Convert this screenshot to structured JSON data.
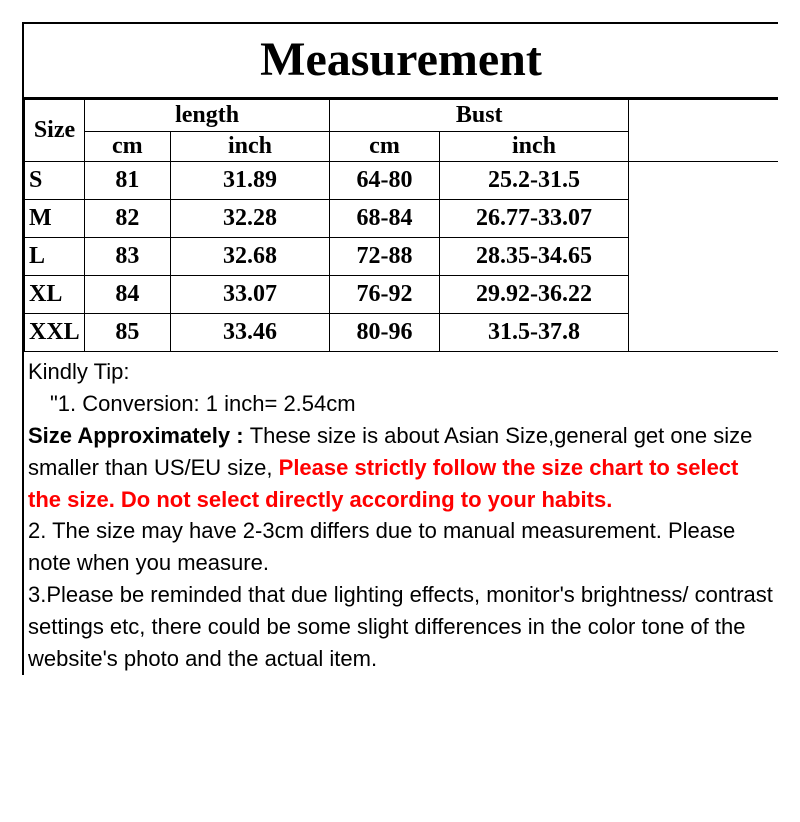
{
  "title": "Measurement",
  "headers": {
    "size": "Size",
    "length": "length",
    "bust": "Bust",
    "cm": "cm",
    "inch": "inch"
  },
  "rows": [
    {
      "size": "S",
      "len_cm": "81",
      "len_in": "31.89",
      "bust_cm": "64-80",
      "bust_in": "25.2-31.5"
    },
    {
      "size": "M",
      "len_cm": "82",
      "len_in": "32.28",
      "bust_cm": "68-84",
      "bust_in": "26.77-33.07"
    },
    {
      "size": "L",
      "len_cm": "83",
      "len_in": "32.68",
      "bust_cm": "72-88",
      "bust_in": "28.35-34.65"
    },
    {
      "size": "XL",
      "len_cm": "84",
      "len_in": "33.07",
      "bust_cm": "76-92",
      "bust_in": "29.92-36.22"
    },
    {
      "size": "XXL",
      "len_cm": "85",
      "len_in": "33.46",
      "bust_cm": "80-96",
      "bust_in": "31.5-37.8"
    }
  ],
  "tips": {
    "header": "Kindly Tip:",
    "line1": "\"1. Conversion:  1 inch= 2.54cm",
    "approx_lead": "Size Approximately :  ",
    "approx_black": "These size is about Asian Size,general get one size smaller than US/EU size, ",
    "approx_red": "Please strictly follow the size chart  to select the size. Do not select directly according to your habits.",
    "line2": "2. The size may have 2-3cm differs due to manual measurement. Please note when you measure.",
    "line3": "3.Please be reminded that due lighting effects, monitor's brightness/ contrast settings etc, there could be some slight differences in the color tone of the website's photo and the actual item."
  },
  "colors": {
    "text": "#000000",
    "warn": "#ff0000",
    "bg": "#ffffff"
  }
}
